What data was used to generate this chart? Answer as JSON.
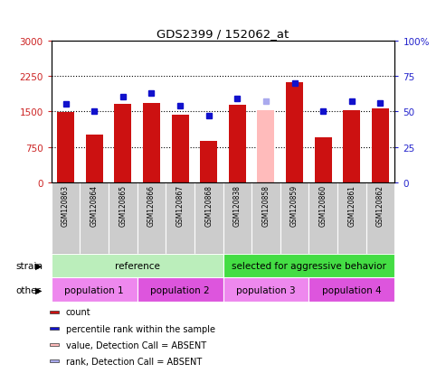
{
  "title": "GDS2399 / 152062_at",
  "samples": [
    "GSM120863",
    "GSM120864",
    "GSM120865",
    "GSM120866",
    "GSM120867",
    "GSM120868",
    "GSM120838",
    "GSM120858",
    "GSM120859",
    "GSM120860",
    "GSM120861",
    "GSM120862"
  ],
  "counts": [
    1490,
    1000,
    1650,
    1680,
    1430,
    870,
    1640,
    1530,
    2120,
    950,
    1530,
    1560
  ],
  "percentile_ranks": [
    55,
    50,
    60,
    63,
    54,
    47,
    59,
    57,
    70,
    50,
    57,
    56
  ],
  "absent_flags": [
    false,
    false,
    false,
    false,
    false,
    false,
    false,
    true,
    false,
    false,
    false,
    false
  ],
  "absent_rank_flags": [
    false,
    false,
    false,
    false,
    false,
    false,
    false,
    true,
    false,
    false,
    false,
    false
  ],
  "bar_color_normal": "#cc1111",
  "bar_color_absent": "#ffbbbb",
  "dot_color_normal": "#1111cc",
  "dot_color_absent": "#aaaaee",
  "ylim_left": [
    0,
    3000
  ],
  "ylim_right": [
    0,
    100
  ],
  "yticks_left": [
    0,
    750,
    1500,
    2250,
    3000
  ],
  "yticks_right": [
    0,
    25,
    50,
    75,
    100
  ],
  "ytick_labels_left": [
    "0",
    "750",
    "1500",
    "2250",
    "3000"
  ],
  "ytick_labels_right": [
    "0",
    "25",
    "50",
    "75",
    "100%"
  ],
  "strain_groups": [
    {
      "label": "reference",
      "start": 0,
      "end": 6,
      "color": "#bbeebb"
    },
    {
      "label": "selected for aggressive behavior",
      "start": 6,
      "end": 12,
      "color": "#44dd44"
    }
  ],
  "other_groups": [
    {
      "label": "population 1",
      "start": 0,
      "end": 3,
      "color": "#ee88ee"
    },
    {
      "label": "population 2",
      "start": 3,
      "end": 6,
      "color": "#dd55dd"
    },
    {
      "label": "population 3",
      "start": 6,
      "end": 9,
      "color": "#ee88ee"
    },
    {
      "label": "population 4",
      "start": 9,
      "end": 12,
      "color": "#dd55dd"
    }
  ],
  "legend_items": [
    {
      "label": "count",
      "color": "#cc1111"
    },
    {
      "label": "percentile rank within the sample",
      "color": "#1111cc"
    },
    {
      "label": "value, Detection Call = ABSENT",
      "color": "#ffbbbb"
    },
    {
      "label": "rank, Detection Call = ABSENT",
      "color": "#aaaaee"
    }
  ],
  "sample_box_color": "#cccccc",
  "background_color": "#ffffff"
}
